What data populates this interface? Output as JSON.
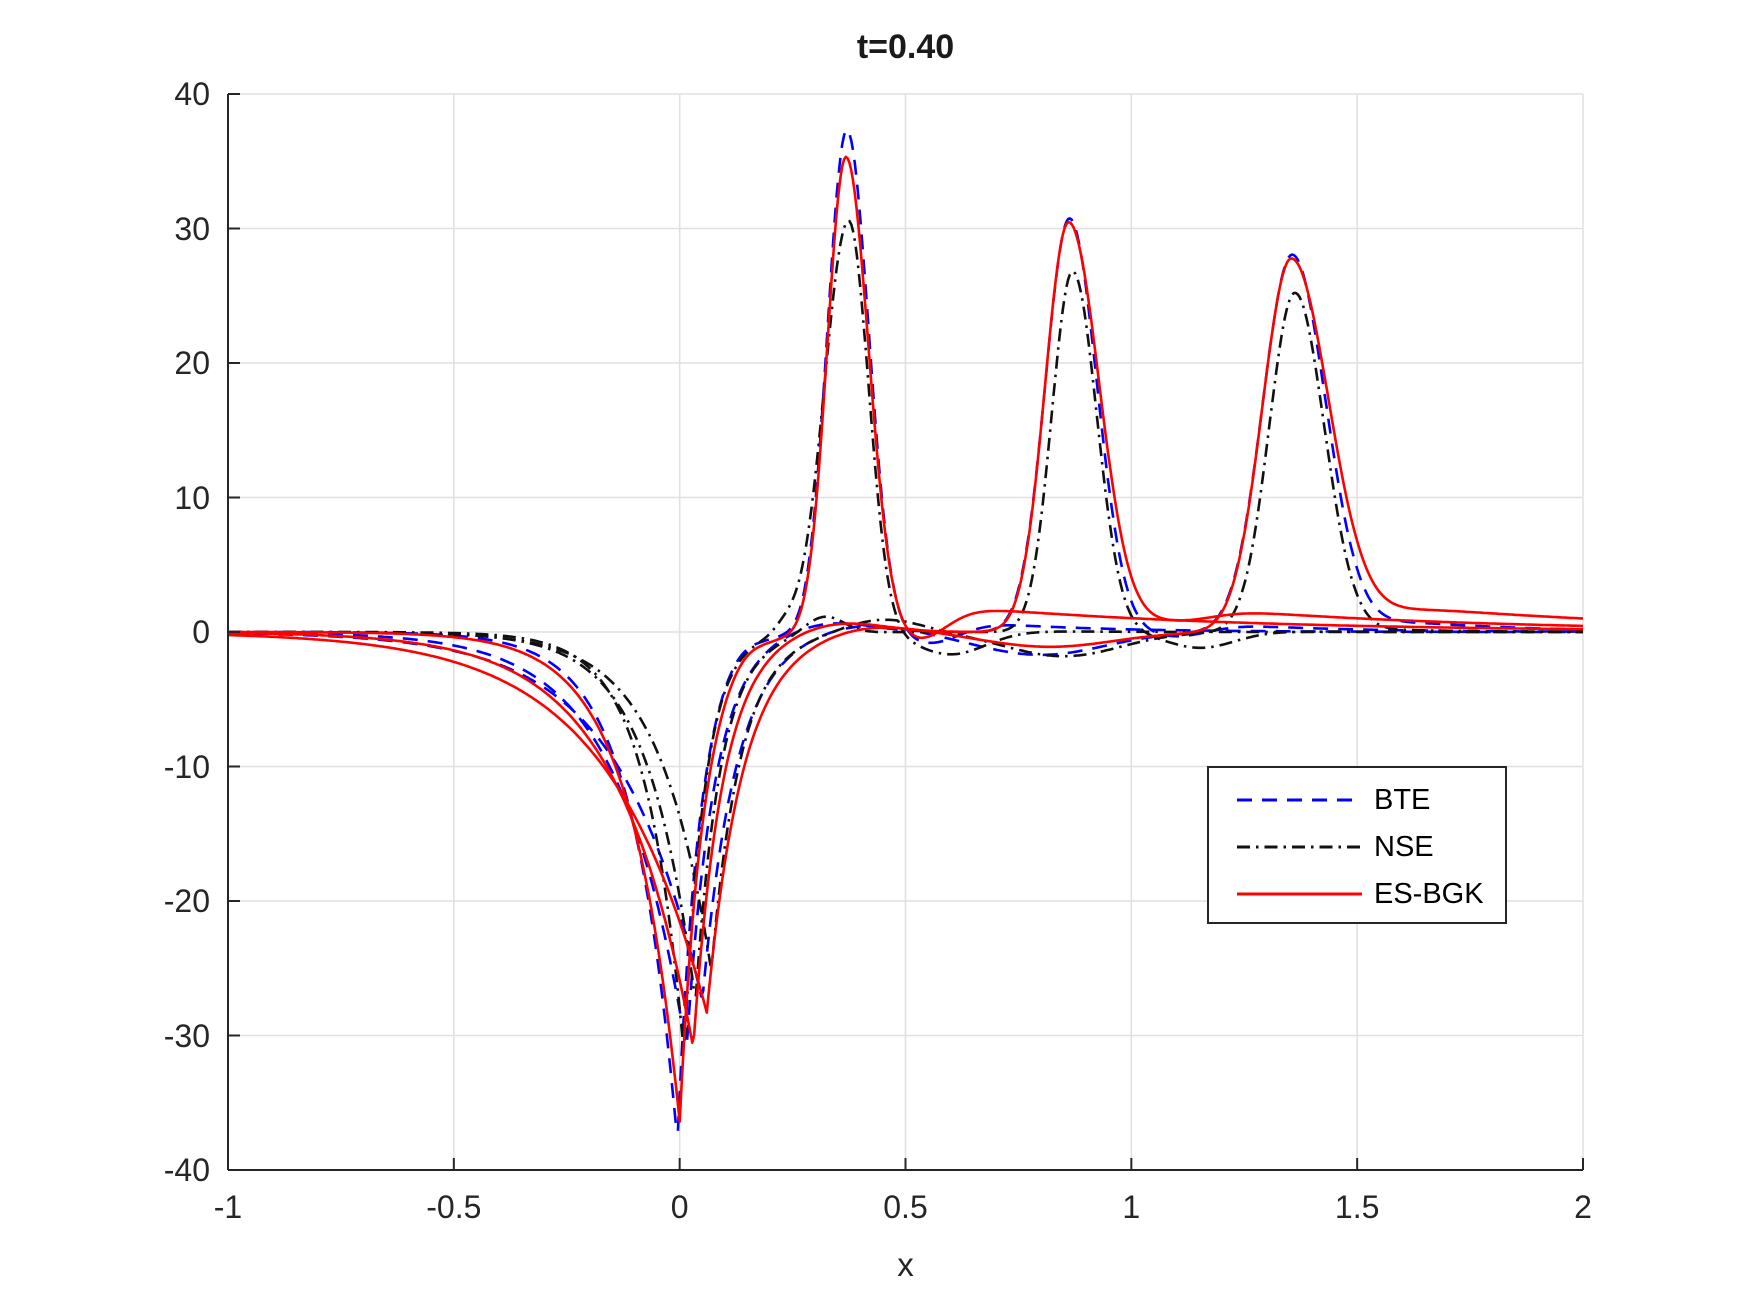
{
  "figure": {
    "title": "t=0.40",
    "xlabel": "x"
  },
  "chart_data": {
    "type": "line",
    "title": "t=0.40",
    "xlabel": "x",
    "ylabel": "",
    "xlim": [
      -1,
      2
    ],
    "ylim": [
      -40,
      40
    ],
    "xticks": [
      -1,
      -0.5,
      0,
      0.5,
      1,
      1.5,
      2
    ],
    "xtick_labels": [
      "-1",
      "-0.5",
      "0",
      "0.5",
      "1",
      "1.5",
      "2"
    ],
    "yticks": [
      -40,
      -30,
      -20,
      -10,
      0,
      10,
      20,
      30,
      40
    ],
    "ytick_labels": [
      "-40",
      "-30",
      "-20",
      "-10",
      "0",
      "10",
      "20",
      "30",
      "40"
    ],
    "grid": true,
    "grid_color": "#e0e0e0",
    "axis_color": "#262626",
    "legend": {
      "position": "inside-lower-right",
      "entries": [
        {
          "label": "BTE",
          "color": "#0000ff",
          "style": "dashed"
        },
        {
          "label": "NSE",
          "color": "#111111",
          "style": "dash-dot"
        },
        {
          "label": "ES-BGK",
          "color": "#ff0000",
          "style": "solid"
        }
      ]
    },
    "description": "Nine curves: three wave pulses (1,2,3), each computed by three methods (BTE blue dashed, NSE black dash-dot, ES-BGK red solid). Each curve has a deep negative well near x=0 and a tall positive peak further right, with small near-zero oscillations and slowly decaying right tails.",
    "series": [
      {
        "name": "BTE pulse 1",
        "method": "BTE",
        "pulse": 1,
        "color": "#0000ff",
        "style": "dashed",
        "key_points": {
          "well": {
            "x": -0.005,
            "y": -37.9
          },
          "peak": {
            "x": 0.37,
            "y": 37.3
          }
        },
        "well": {
          "A": -37.9,
          "c": -0.005,
          "sL": 0.1,
          "sR": 0.05
        },
        "peak": {
          "A": 37.3,
          "c": 0.37,
          "sL": 0.06,
          "sR": 0.068
        },
        "bump": {
          "A": 0.5,
          "c": 0.13,
          "s": 0.05
        },
        "trough": {
          "A": -1.4,
          "c": 0.56,
          "s": 0.09
        },
        "tail": {
          "T": 2.2,
          "lam": 0.26
        }
      },
      {
        "name": "BTE pulse 2",
        "method": "BTE",
        "pulse": 2,
        "color": "#0000ff",
        "style": "dashed",
        "key_points": {
          "well": {
            "x": 0.015,
            "y": -31.1
          },
          "peak": {
            "x": 0.863,
            "y": 30.7
          }
        },
        "well": {
          "A": -31.1,
          "c": 0.015,
          "sL": 0.15,
          "sR": 0.062
        },
        "peak": {
          "A": 30.7,
          "c": 0.863,
          "sL": 0.075,
          "sR": 0.085
        },
        "bump": {
          "A": 0.8,
          "c": 0.33,
          "s": 0.13
        },
        "trough": {
          "A": -1.0,
          "c": 1.1,
          "s": 0.1
        },
        "tail": {
          "T": 2.2,
          "lam": 0.26
        }
      },
      {
        "name": "BTE pulse 3",
        "method": "BTE",
        "pulse": 3,
        "color": "#0000ff",
        "style": "dashed",
        "key_points": {
          "well": {
            "x": 0.05,
            "y": -27.4
          },
          "peak": {
            "x": 1.356,
            "y": 28.0
          }
        },
        "well": {
          "A": -27.4,
          "c": 0.05,
          "sL": 0.185,
          "sR": 0.075
        },
        "peak": {
          "A": 28.0,
          "c": 1.356,
          "sL": 0.092,
          "sR": 0.105
        },
        "bump": {
          "A": 0.7,
          "c": 0.4,
          "s": 0.15
        },
        "trough": {
          "A": -1.7,
          "c": 0.8,
          "s": 0.2
        },
        "tail": {
          "T": 2.2,
          "lam": 0.26
        }
      },
      {
        "name": "NSE pulse 1",
        "method": "NSE",
        "pulse": 1,
        "color": "#111111",
        "style": "dash-dot",
        "key_points": {
          "well": {
            "x": 0.01,
            "y": -31.5
          },
          "peak": {
            "x": 0.374,
            "y": 30.6
          }
        },
        "well": {
          "A": -31.5,
          "c": 0.01,
          "sL": 0.085,
          "sR": 0.046
        },
        "peak": {
          "A": 30.6,
          "c": 0.374,
          "sL": 0.075,
          "sR": 0.062
        },
        "bump": {
          "A": 0.7,
          "c": 0.235,
          "s": 0.035
        },
        "trough": {
          "A": -1.8,
          "c": 0.6,
          "s": 0.11
        },
        "tail": {
          "T": 0.8,
          "lam": 0.16
        }
      },
      {
        "name": "NSE pulse 2",
        "method": "NSE",
        "pulse": 2,
        "color": "#111111",
        "style": "dash-dot",
        "key_points": {
          "well": {
            "x": 0.035,
            "y": -27.5
          },
          "peak": {
            "x": 0.87,
            "y": 26.8
          }
        },
        "well": {
          "A": -27.5,
          "c": 0.035,
          "sL": 0.105,
          "sR": 0.056
        },
        "peak": {
          "A": 26.8,
          "c": 0.87,
          "sL": 0.065,
          "sR": 0.075
        },
        "bump": {
          "A": 1.3,
          "c": 0.32,
          "s": 0.06
        },
        "trough": {
          "A": -1.3,
          "c": 1.15,
          "s": 0.11
        },
        "tail": {
          "T": 0.8,
          "lam": 0.16
        }
      },
      {
        "name": "NSE pulse 3",
        "method": "NSE",
        "pulse": 3,
        "color": "#111111",
        "style": "dash-dot",
        "key_points": {
          "well": {
            "x": 0.07,
            "y": -25.2
          },
          "peak": {
            "x": 1.362,
            "y": 25.2
          }
        },
        "well": {
          "A": -25.2,
          "c": 0.07,
          "sL": 0.115,
          "sR": 0.066
        },
        "peak": {
          "A": 25.2,
          "c": 1.362,
          "sL": 0.08,
          "sR": 0.092
        },
        "bump": {
          "A": 1.0,
          "c": 0.45,
          "s": 0.12
        },
        "trough": {
          "A": -1.8,
          "c": 0.85,
          "s": 0.18
        },
        "tail": {
          "T": 0.8,
          "lam": 0.16
        }
      },
      {
        "name": "ES-BGK pulse 1",
        "method": "ES-BGK",
        "pulse": 1,
        "color": "#ff0000",
        "style": "solid",
        "key_points": {
          "well": {
            "x": 0.0,
            "y": -36.4
          },
          "peak": {
            "x": 0.368,
            "y": 35.3
          }
        },
        "well": {
          "A": -36.4,
          "c": 0.0,
          "sL": 0.11,
          "sR": 0.054
        },
        "peak": {
          "A": 35.3,
          "c": 0.368,
          "sL": 0.058,
          "sR": 0.07
        },
        "bump": {
          "A": 0.5,
          "c": 0.14,
          "s": 0.05
        },
        "trough": {
          "A": -1.5,
          "c": 0.54,
          "s": 0.08
        },
        "tail": {
          "T": 2.85,
          "lam": 0.62
        }
      },
      {
        "name": "ES-BGK pulse 2",
        "method": "ES-BGK",
        "pulse": 2,
        "color": "#ff0000",
        "style": "solid",
        "key_points": {
          "well": {
            "x": 0.03,
            "y": -30.9
          },
          "peak": {
            "x": 0.861,
            "y": 30.4
          }
        },
        "well": {
          "A": -30.9,
          "c": 0.03,
          "sL": 0.17,
          "sR": 0.065
        },
        "peak": {
          "A": 30.4,
          "c": 0.861,
          "sL": 0.073,
          "sR": 0.095
        },
        "bump": {
          "A": 0.8,
          "c": 0.35,
          "s": 0.14
        },
        "trough": {
          "A": -0.7,
          "c": 1.12,
          "s": 0.1
        },
        "tail": {
          "T": 2.85,
          "lam": 0.62
        }
      },
      {
        "name": "ES-BGK pulse 3",
        "method": "ES-BGK",
        "pulse": 3,
        "color": "#ff0000",
        "style": "solid",
        "key_points": {
          "well": {
            "x": 0.06,
            "y": -28.3
          },
          "peak": {
            "x": 1.354,
            "y": 27.7
          }
        },
        "well": {
          "A": -28.3,
          "c": 0.06,
          "sL": 0.22,
          "sR": 0.08
        },
        "peak": {
          "A": 27.7,
          "c": 1.354,
          "sL": 0.09,
          "sR": 0.118
        },
        "bump": {
          "A": 0.6,
          "c": 0.42,
          "s": 0.15
        },
        "trough": {
          "A": -1.1,
          "c": 0.82,
          "s": 0.2
        },
        "tail": {
          "T": 2.85,
          "lam": 0.62
        }
      }
    ]
  }
}
